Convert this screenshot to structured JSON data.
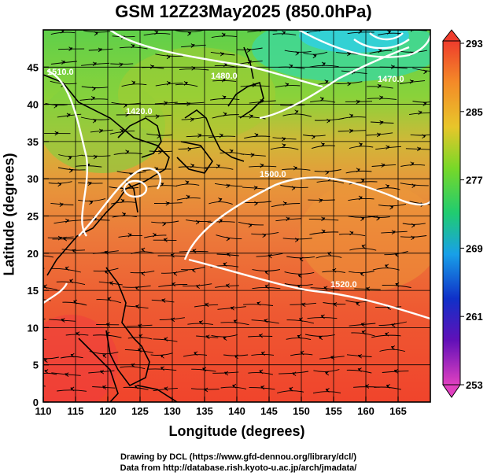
{
  "title": "GSM 12Z23May2025 (850.0hPa)",
  "x_axis": {
    "label": "Longitude (degrees)",
    "range": [
      110,
      170
    ],
    "ticks": [
      "110",
      "115",
      "120",
      "125",
      "130",
      "135",
      "140",
      "145",
      "150",
      "155",
      "160",
      "165"
    ]
  },
  "y_axis": {
    "label": "Latitude  (degrees)",
    "range": [
      0,
      50
    ],
    "ticks": [
      "0",
      "5",
      "10",
      "15",
      "20",
      "25",
      "30",
      "35",
      "40",
      "45"
    ]
  },
  "colorbar": {
    "ticks": [
      "293",
      "285",
      "277",
      "269",
      "261",
      "253"
    ]
  },
  "contour_labels": [
    "1480.0",
    "1420.0",
    "1470.0",
    "1500.0",
    "1520.0",
    "1510.0"
  ],
  "credits": {
    "line1": "Drawing by DCL (https://www.gfd-dennou.org/library/dcl/)",
    "line2": "Data from http://database.rish.kyoto-u.ac.jp/arch/jmadata/"
  },
  "colors": {
    "frame": "#000000",
    "contour": "#ffffff",
    "coast": "#000000"
  }
}
